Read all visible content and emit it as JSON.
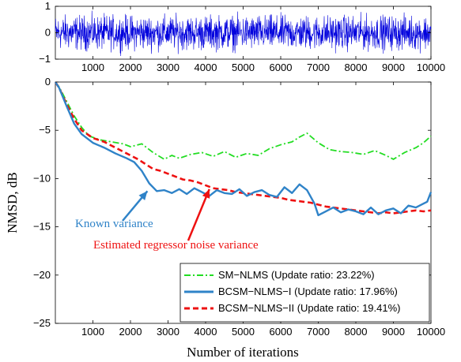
{
  "chart_data": [
    {
      "type": "line",
      "panel": "top",
      "xlabel": "",
      "ylabel": "",
      "xlim": [
        0,
        10000
      ],
      "ylim": [
        -1,
        1
      ],
      "xticks": [
        1000,
        2000,
        3000,
        4000,
        5000,
        6000,
        7000,
        8000,
        9000,
        10000
      ],
      "yticks": [
        -1,
        0,
        1
      ],
      "grid": false,
      "series": [
        {
          "color": "#0000dd",
          "description_values": "random signal spanning roughly -0.95 to 0.95 over 10000 samples"
        }
      ]
    },
    {
      "type": "line",
      "panel": "bottom",
      "xlabel": "Number of iterations",
      "ylabel": "NMSD, dB",
      "xlim": [
        0,
        10000
      ],
      "ylim": [
        -25,
        0
      ],
      "xticks": [
        1000,
        2000,
        3000,
        4000,
        5000,
        6000,
        7000,
        8000,
        9000,
        10000
      ],
      "yticks": [
        0,
        -5,
        -10,
        -15,
        -20,
        -25
      ],
      "grid": false,
      "legend_position": "lower-right",
      "series": [
        {
          "name": "SM−NLMS (Update ratio: 23.22%)",
          "color": "#22dd22",
          "style": "dashdot",
          "x": [
            0,
            100,
            300,
            500,
            700,
            900,
            1200,
            1500,
            1800,
            2000,
            2300,
            2600,
            2900,
            3100,
            3300,
            3600,
            3900,
            4200,
            4500,
            4800,
            5100,
            5400,
            5700,
            6000,
            6300,
            6500,
            6700,
            7000,
            7300,
            7600,
            7900,
            8200,
            8500,
            8800,
            9000,
            9300,
            9600,
            9800,
            10000
          ],
          "y": [
            0,
            -0.5,
            -2,
            -3.5,
            -4.7,
            -5.6,
            -6.0,
            -6.2,
            -6.4,
            -6.7,
            -6.4,
            -7.3,
            -8.0,
            -7.6,
            -7.9,
            -7.5,
            -7.3,
            -7.7,
            -7.2,
            -7.8,
            -7.4,
            -7.6,
            -6.9,
            -6.5,
            -6.2,
            -5.7,
            -5.3,
            -6.3,
            -7.0,
            -7.2,
            -7.3,
            -7.5,
            -7.1,
            -7.6,
            -8.0,
            -7.3,
            -6.8,
            -6.3,
            -5.6
          ]
        },
        {
          "name": "BCSM−NLMS−I (Update ratio: 17.96%)",
          "color": "#2f83c8",
          "style": "solid",
          "x": [
            0,
            100,
            300,
            500,
            700,
            1000,
            1300,
            1600,
            1900,
            2100,
            2300,
            2500,
            2700,
            2900,
            3100,
            3300,
            3500,
            3700,
            3900,
            4100,
            4300,
            4500,
            4700,
            4900,
            5100,
            5300,
            5500,
            5700,
            5900,
            6100,
            6300,
            6500,
            6700,
            6900,
            7000,
            7200,
            7400,
            7600,
            7800,
            8000,
            8200,
            8400,
            8600,
            8800,
            9000,
            9200,
            9400,
            9600,
            9800,
            9900,
            10000
          ],
          "y": [
            0,
            -0.6,
            -2.5,
            -4.3,
            -5.4,
            -6.3,
            -6.8,
            -7.4,
            -7.9,
            -8.3,
            -9.2,
            -10.5,
            -11.3,
            -11.2,
            -11.5,
            -11.1,
            -11.6,
            -11.0,
            -11.4,
            -11.8,
            -11.2,
            -11.5,
            -11.6,
            -11.1,
            -11.8,
            -11.4,
            -11.2,
            -11.7,
            -11.9,
            -10.9,
            -11.5,
            -10.6,
            -11.2,
            -12.6,
            -13.8,
            -13.4,
            -13.0,
            -13.5,
            -13.2,
            -13.4,
            -13.7,
            -13.0,
            -13.7,
            -13.3,
            -13.1,
            -13.6,
            -12.8,
            -13.0,
            -12.6,
            -12.4,
            -11.4
          ]
        },
        {
          "name": "BCSM−NLMS−II (Update ratio: 19.41%)",
          "color": "#ee1111",
          "style": "dashed",
          "x": [
            0,
            100,
            300,
            500,
            700,
            1000,
            1300,
            1600,
            1900,
            2200,
            2400,
            2600,
            2800,
            3000,
            3200,
            3400,
            3600,
            3800,
            4000,
            4200,
            4400,
            4600,
            4800,
            5000,
            5200,
            5400,
            5600,
            5800,
            6000,
            6200,
            6400,
            6600,
            6800,
            7000,
            7200,
            7400,
            7600,
            7800,
            8000,
            8200,
            8400,
            8600,
            8800,
            9000,
            9200,
            9400,
            9600,
            9800,
            10000
          ],
          "y": [
            0,
            -0.6,
            -2.3,
            -3.8,
            -5.0,
            -5.8,
            -6.2,
            -6.8,
            -7.4,
            -8.0,
            -8.5,
            -9.0,
            -9.2,
            -9.5,
            -9.8,
            -10.1,
            -10.2,
            -10.4,
            -10.7,
            -11.0,
            -11.1,
            -11.2,
            -11.4,
            -11.5,
            -11.6,
            -11.7,
            -11.8,
            -11.9,
            -12.0,
            -12.2,
            -12.3,
            -12.4,
            -12.5,
            -12.7,
            -12.9,
            -13.0,
            -13.1,
            -13.2,
            -13.3,
            -13.4,
            -13.5,
            -13.6,
            -13.5,
            -13.6,
            -13.5,
            -13.4,
            -13.3,
            -13.4,
            -13.3
          ]
        }
      ],
      "annotations": [
        {
          "text": "Known variance",
          "color": "#2f83c8",
          "target_x": 2450,
          "target_y": -11.3
        },
        {
          "text": "Estimated regressor noise variance",
          "color": "#ee1111",
          "target_x": 4100,
          "target_y": -11.1
        }
      ]
    }
  ]
}
